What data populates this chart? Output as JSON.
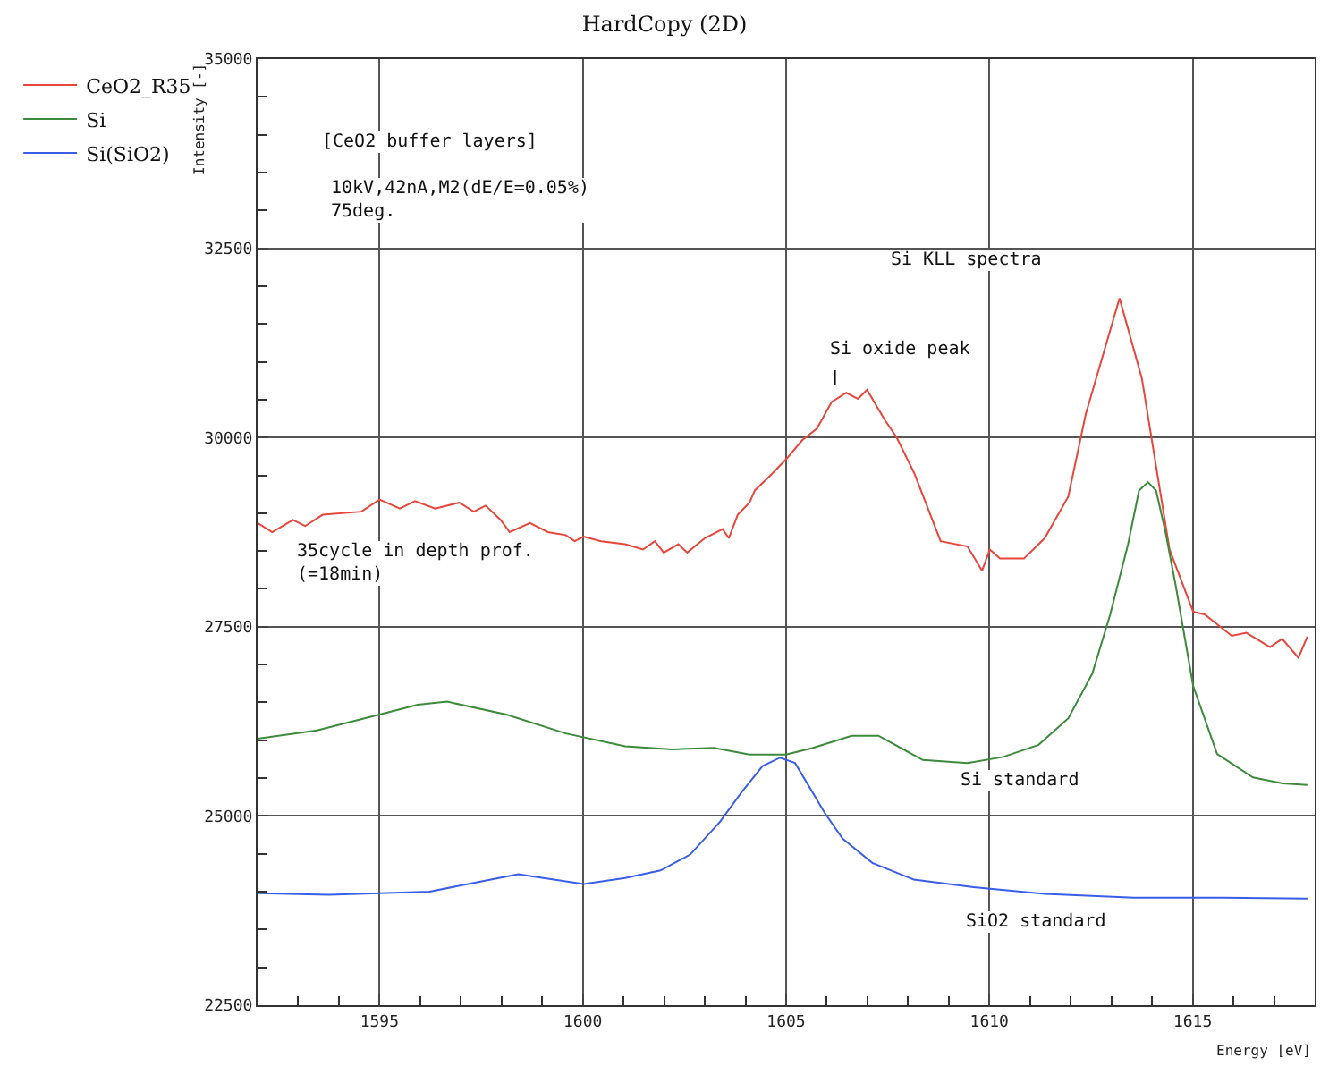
{
  "chart_data": {
    "type": "line",
    "title": "HardCopy (2D)",
    "xlabel": "Energy [eV]",
    "ylabel": "Intensity [-]",
    "xlim": [
      1592,
      1618
    ],
    "xticks": [
      1595,
      1600,
      1605,
      1610,
      1615
    ],
    "ylim": [
      22500,
      35000
    ],
    "yticks": [
      22500,
      25000,
      27500,
      30000,
      32500,
      35000
    ],
    "grid": true,
    "legend": "left",
    "marker": "none",
    "line_style": "solid",
    "series": [
      {
        "name": "CeO2_R35",
        "color": "#e8463c",
        "x": [
          1592.0,
          1592.36,
          1592.87,
          1593.17,
          1593.6,
          1594.55,
          1595.0,
          1595.5,
          1595.87,
          1596.37,
          1596.96,
          1597.32,
          1597.61,
          1597.98,
          1598.2,
          1598.7,
          1599.14,
          1599.58,
          1599.8,
          1600.02,
          1600.45,
          1601.04,
          1601.48,
          1601.77,
          1601.99,
          1602.35,
          1602.57,
          1603.0,
          1603.44,
          1603.59,
          1603.81,
          1604.1,
          1604.23,
          1604.67,
          1605.03,
          1605.39,
          1605.76,
          1606.12,
          1606.48,
          1606.77,
          1606.99,
          1607.43,
          1607.72,
          1608.15,
          1608.8,
          1609.46,
          1609.82,
          1610.01,
          1610.26,
          1610.85,
          1611.36,
          1611.94,
          1612.37,
          1613.2,
          1613.75,
          1614.43,
          1615.01,
          1615.3,
          1615.96,
          1616.32,
          1616.9,
          1617.2,
          1617.6,
          1617.82
        ],
        "values": [
          28870,
          28750,
          28910,
          28830,
          28980,
          29020,
          29180,
          29060,
          29160,
          29060,
          29140,
          29020,
          29100,
          28910,
          28750,
          28870,
          28750,
          28710,
          28630,
          28690,
          28630,
          28590,
          28520,
          28630,
          28480,
          28590,
          28480,
          28670,
          28790,
          28670,
          28980,
          29140,
          29300,
          29530,
          29730,
          29960,
          30120,
          30470,
          30590,
          30510,
          30630,
          30230,
          30000,
          29530,
          28630,
          28560,
          28240,
          28520,
          28400,
          28400,
          28670,
          29220,
          30310,
          31840,
          30780,
          28520,
          27700,
          27660,
          27380,
          27420,
          27230,
          27340,
          27090,
          27370
        ]
      },
      {
        "name": "Si",
        "color": "#3d8a3d",
        "x": [
          1592.0,
          1593.46,
          1595.0,
          1595.94,
          1596.66,
          1598.12,
          1599.58,
          1601.04,
          1602.2,
          1603.22,
          1604.1,
          1605.0,
          1605.66,
          1606.61,
          1607.27,
          1608.36,
          1609.46,
          1610.34,
          1611.21,
          1611.94,
          1612.53,
          1612.97,
          1613.41,
          1613.68,
          1613.9,
          1614.1,
          1614.33,
          1614.58,
          1615.01,
          1615.6,
          1616.48,
          1617.21,
          1617.82
        ],
        "values": [
          26020,
          26130,
          26340,
          26470,
          26510,
          26340,
          26090,
          25920,
          25880,
          25900,
          25810,
          25810,
          25900,
          26060,
          26060,
          25740,
          25700,
          25780,
          25940,
          26290,
          26880,
          27660,
          28590,
          29300,
          29410,
          29300,
          28750,
          28050,
          26720,
          25820,
          25510,
          25430,
          25410
        ]
      },
      {
        "name": "Si(SiO2)",
        "color": "#3a5ee8",
        "x": [
          1592.0,
          1593.75,
          1595.0,
          1596.23,
          1597.54,
          1598.41,
          1600.02,
          1601.04,
          1601.91,
          1602.64,
          1603.37,
          1603.9,
          1604.42,
          1604.85,
          1605.22,
          1605.95,
          1606.39,
          1607.12,
          1608.14,
          1609.61,
          1611.36,
          1613.55,
          1615.75,
          1617.82
        ],
        "values": [
          23980,
          23960,
          23980,
          24000,
          24140,
          24230,
          24100,
          24180,
          24280,
          24490,
          24920,
          25310,
          25660,
          25770,
          25700,
          25040,
          24700,
          24380,
          24160,
          24060,
          23970,
          23920,
          23920,
          23910
        ]
      }
    ],
    "annotations": [
      "[CeO2 buffer layers]",
      "10kV,42nA,M2(dE/E=0.05%)\n75deg.",
      "Si KLL spectra",
      "35cycle in depth prof.\n(=18min)",
      "Si oxide peak",
      "Si standard",
      "SiO2 standard"
    ]
  }
}
